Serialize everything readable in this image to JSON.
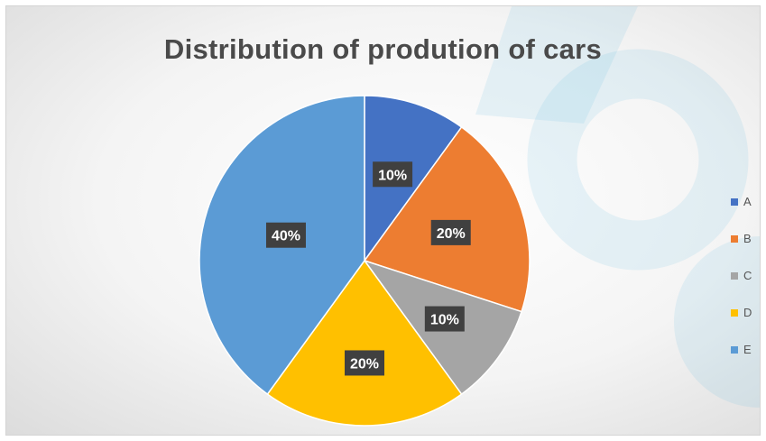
{
  "chart_data": {
    "type": "pie",
    "title": "Distribution of prodution of cars",
    "categories": [
      "A",
      "B",
      "C",
      "D",
      "E"
    ],
    "values": [
      10,
      20,
      10,
      20,
      40
    ],
    "data_labels": [
      "10%",
      "20%",
      "10%",
      "20%",
      "40%"
    ],
    "colors": [
      "#4472c4",
      "#ed7d31",
      "#a5a5a5",
      "#ffc000",
      "#5b9bd5"
    ],
    "legend_position": "right",
    "start_angle": "12 o'clock, clockwise"
  }
}
